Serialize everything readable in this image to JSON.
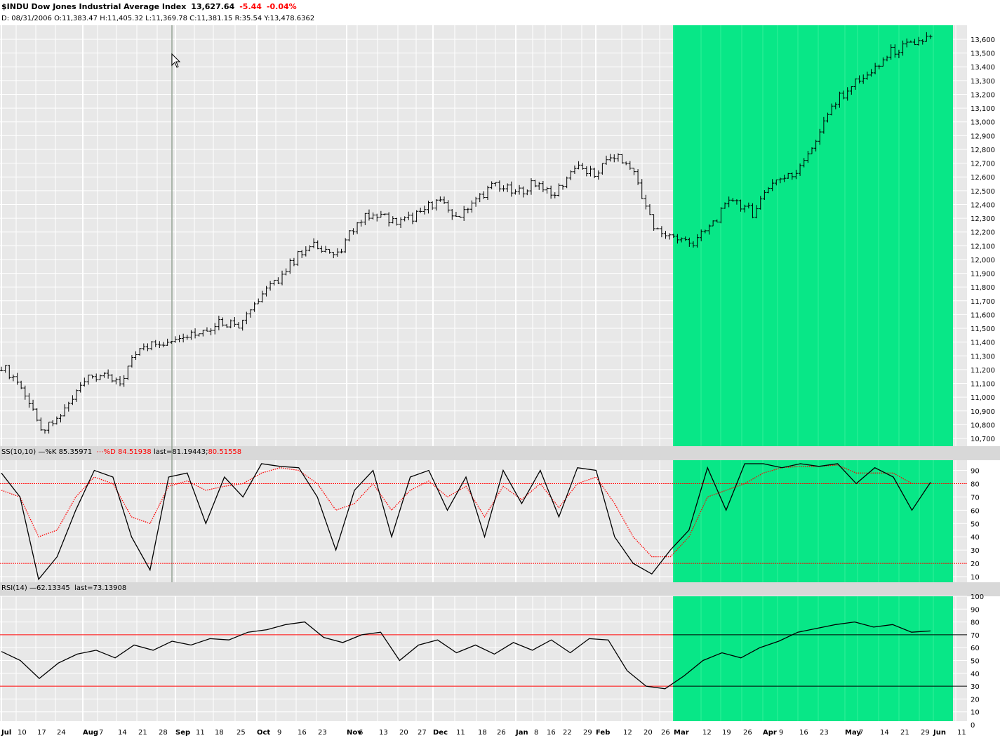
{
  "header": {
    "symbol": "$INDU",
    "name": "Dow Jones Industrial Average Index",
    "last": "13,627.64",
    "change": "-5.44",
    "change_pct": "-0.04%",
    "ohlc_line": "D: 08/31/2006 O:11,383.47 H:11,405.32 L:11,369.78 C:11,381.15 R:35.54 Y:13,478.6362"
  },
  "colors": {
    "highlight": "#00e683",
    "panel_bg": "#e8e8e8",
    "grid": "#ffffff",
    "price": "#000000",
    "signal": "#ff0000"
  },
  "stoch_label": {
    "name": "SS(10,10)",
    "k_text": "%K 85.35971",
    "d_text": "%D 84.51938",
    "last_text": "last=81.19443;",
    "last_d": "80.51558"
  },
  "rsi_label": {
    "name": "RSI(14)",
    "value_text": "62.13345",
    "last_text": "last=73.13908"
  },
  "chart_data": [
    {
      "type": "ohlc",
      "title": "$INDU Dow Jones Industrial Average Index",
      "xlabels": [
        "Jul",
        "10",
        "17",
        "24",
        "Aug",
        "7",
        "14",
        "21",
        "28",
        "Sep",
        "11",
        "18",
        "25",
        "Oct",
        "9",
        "16",
        "23",
        "Nov",
        "6",
        "13",
        "20",
        "27",
        "Dec",
        "11",
        "18",
        "26",
        "Jan",
        "8",
        "16",
        "22",
        "29",
        "Feb",
        "12",
        "20",
        "26",
        "Mar",
        "12",
        "19",
        "26",
        "Apr",
        "9",
        "16",
        "23",
        "May",
        "7",
        "14",
        "21",
        "29",
        "Jun",
        "11"
      ],
      "y_ticks": [
        "10,700",
        "10,800",
        "10,900",
        "11,000",
        "11,100",
        "11,200",
        "11,300",
        "11,400",
        "11,500",
        "11,600",
        "11,700",
        "11,800",
        "11,900",
        "12,000",
        "12,100",
        "12,200",
        "12,300",
        "12,400",
        "12,500",
        "12,600",
        "12,700",
        "12,800",
        "12,900",
        "13,000",
        "13,100",
        "13,200",
        "13,300",
        "13,400",
        "13,500",
        "13,600"
      ],
      "ylim": [
        10680,
        13680
      ],
      "highlight_range": [
        "2007-02-27",
        "2007-06-04"
      ],
      "closes_weekly": [
        11228,
        11090,
        10740,
        10860,
        11110,
        11150,
        11100,
        11380,
        11380,
        11460,
        11470,
        11550,
        11530,
        11720,
        11860,
        12030,
        12110,
        12020,
        12280,
        12340,
        12260,
        12320,
        12430,
        12310,
        12440,
        12550,
        12480,
        12560,
        12480,
        12670,
        12620,
        12760,
        12640,
        12220,
        12160,
        12110,
        12270,
        12440,
        12340,
        12570,
        12610,
        12820,
        13110,
        13270,
        13340,
        13510,
        13560,
        13620
      ],
      "series": [
        {
          "name": "$INDU"
        }
      ]
    },
    {
      "type": "line",
      "title": "SS(10,10)",
      "y_ticks": [
        "10",
        "20",
        "30",
        "40",
        "50",
        "60",
        "70",
        "80",
        "90"
      ],
      "ylim": [
        0,
        100
      ],
      "reference_lines": [
        20,
        80
      ],
      "series": [
        {
          "name": "%K",
          "values": [
            88,
            70,
            8,
            25,
            60,
            90,
            85,
            40,
            15,
            85,
            88,
            50,
            85,
            70,
            95,
            93,
            92,
            70,
            30,
            75,
            90,
            40,
            85,
            90,
            60,
            85,
            40,
            90,
            65,
            90,
            55,
            92,
            90,
            40,
            20,
            12,
            30,
            45,
            92,
            60,
            95,
            95,
            92,
            95,
            93,
            95,
            80,
            92,
            85,
            60,
            81
          ]
        },
        {
          "name": "%D",
          "values": [
            75,
            70,
            40,
            45,
            70,
            85,
            80,
            55,
            50,
            78,
            82,
            75,
            78,
            80,
            88,
            92,
            90,
            80,
            60,
            65,
            80,
            60,
            75,
            82,
            70,
            78,
            55,
            78,
            68,
            80,
            62,
            80,
            85,
            65,
            40,
            25,
            25,
            40,
            70,
            75,
            80,
            88,
            92,
            93,
            93,
            94,
            88,
            88,
            88,
            80,
            80
          ]
        }
      ]
    },
    {
      "type": "line",
      "title": "RSI(14)",
      "y_ticks": [
        "0",
        "10",
        "20",
        "30",
        "40",
        "50",
        "60",
        "70",
        "80",
        "90",
        "100"
      ],
      "ylim": [
        0,
        100
      ],
      "reference_lines": [
        30,
        70
      ],
      "series": [
        {
          "name": "RSI",
          "values": [
            57,
            50,
            36,
            48,
            55,
            58,
            52,
            62,
            58,
            65,
            62,
            67,
            66,
            72,
            74,
            78,
            80,
            68,
            64,
            70,
            72,
            50,
            62,
            66,
            56,
            62,
            55,
            64,
            58,
            66,
            56,
            67,
            66,
            42,
            30,
            28,
            38,
            50,
            56,
            52,
            60,
            65,
            72,
            75,
            78,
            80,
            76,
            78,
            72,
            73
          ]
        }
      ]
    }
  ]
}
